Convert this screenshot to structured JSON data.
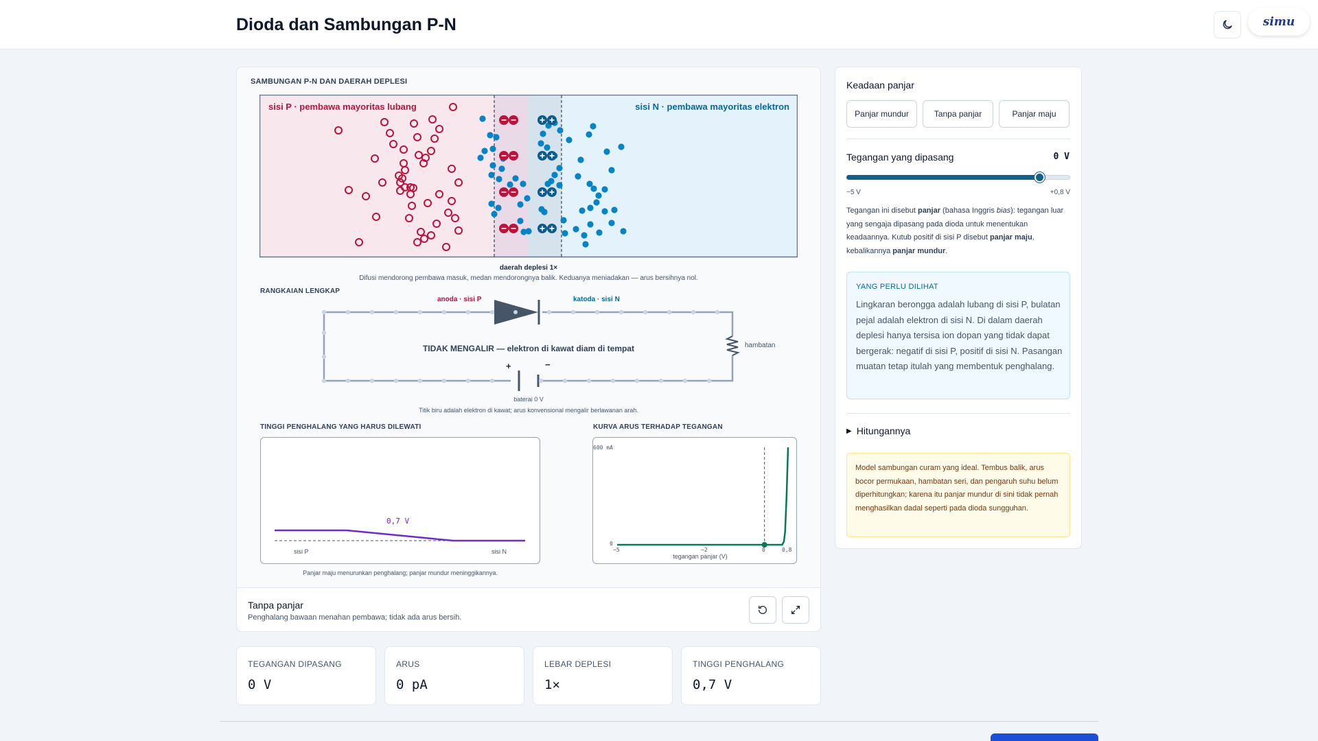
{
  "header": {
    "title": "Dioda dan Sambungan P-N",
    "logo_text": "simu"
  },
  "junction": {
    "section_title": "SAMBUNGAN P-N DAN DAERAH DEPLESI",
    "p_label": "sisi P · pembawa mayoritas lubang",
    "n_label": "sisi N · pembawa mayoritas elektron",
    "depletion_label": "daerah deplesi 1×",
    "caption": "Difusi mendorong pembawa masuk, medan mendorongnya balik. Keduanya meniadakan — arus bersihnya nol.",
    "colors": {
      "p": "#be123c",
      "n": "#0369a1"
    }
  },
  "circuit": {
    "section_title": "RANGKAIAN LENGKAP",
    "anode_label": "anoda · sisi P",
    "cathode_label": "katoda · sisi N",
    "status": "TIDAK MENGALIR — elektron di kawat diam di tempat",
    "resistor_label": "hambatan",
    "plus": "+",
    "minus": "−",
    "battery_label": "baterai 0 V",
    "caption": "Titik biru adalah elektron di kawat; arus konvensional mengalir berlawanan arah."
  },
  "barrier_chart": {
    "section_title": "TINGGI PENGHALANG YANG HARUS DILEWATI",
    "value_label": "0,7 V",
    "left_label": "sisi P",
    "right_label": "sisi N",
    "caption": "Panjar maju menurunkan penghalang; panjar mundur meninggikannya."
  },
  "chart_data": {
    "type": "line",
    "title": "KURVA ARUS TERHADAP TEGANGAN",
    "xlabel": "tegangan panjar (V)",
    "ylabel": "",
    "xlim": [
      -5,
      0.8
    ],
    "ylim": [
      0,
      600
    ],
    "x_ticks": [
      "−5",
      "−2",
      "0",
      "0,8"
    ],
    "y_ticks": [
      "0",
      "600 mA"
    ],
    "series": [
      {
        "x": [
          -5,
          -2,
          0,
          0.4,
          0.6,
          0.66,
          0.7,
          0.75,
          0.8
        ],
        "y": [
          0,
          0,
          0,
          0,
          0,
          20,
          80,
          300,
          600
        ]
      }
    ],
    "marker": {
      "x": 0,
      "y": 0
    },
    "color": "#047857"
  },
  "status_bar": {
    "title": "Tanpa panjar",
    "subtitle": "Penghalang bawaan menahan pembawa; tidak ada arus bersih."
  },
  "controls": {
    "bias_label": "Keadaan panjar",
    "buttons": [
      "Panjar mundur",
      "Tanpa panjar",
      "Panjar maju"
    ],
    "voltage_label": "Tegangan yang dipasang",
    "voltage_value": "0 V",
    "slider_value_v": 0,
    "slider_min_label": "−5 V",
    "slider_max_label": "+0,8 V",
    "description": {
      "p1": "Tegangan ini disebut ",
      "b1": "panjar",
      "p2": " (bahasa Inggris ",
      "i1": "bias",
      "p3": "): tegangan luar yang sengaja dipasang pada dioda untuk menentukan keadaannya. Kutub positif di sisi P disebut ",
      "b2": "panjar maju",
      "p4": ", kebalikannya ",
      "b3": "panjar mundur",
      "p5": "."
    },
    "info_title": "YANG PERLU DILIHAT",
    "info_text": "Lingkaran berongga adalah lubang di sisi P, bulatan pejal adalah elektron di sisi N. Di dalam daerah deplesi hanya tersisa ion dopan yang tidak dapat bergerak: negatif di sisi P, positif di sisi N. Pasangan muatan tetap itulah yang membentuk penghalang.",
    "calc_label": "Hitungannya",
    "note_text": "Model sambungan curam yang ideal. Tembus balik, arus bocor permukaan, hambatan seri, dan pengaruh suhu belum diperhitungkan; karena itu panjar mundur di sini tidak pernah menghasilkan dadal seperti pada dioda sungguhan."
  },
  "stats": [
    {
      "label": "TEGANGAN DIPASANG",
      "value": "0 V"
    },
    {
      "label": "ARUS",
      "value": "0 pA"
    },
    {
      "label": "LEBAR DEPLESI",
      "value": "1×"
    },
    {
      "label": "TINGGI PENGHALANG",
      "value": "0,7 V"
    }
  ]
}
